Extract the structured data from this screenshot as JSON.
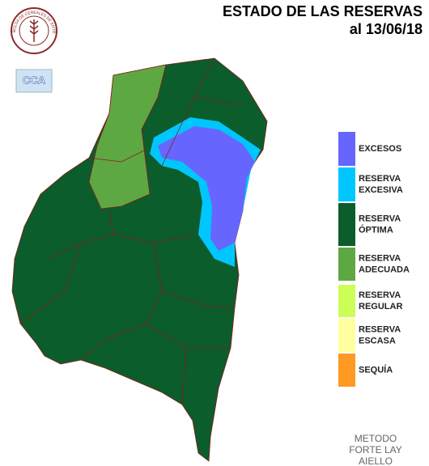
{
  "header": {
    "title": "ESTADO DE LAS RESERVAS",
    "date": "al 13/06/18"
  },
  "logo": {
    "text": "BOLSA DE CEREALES DE ENTRE RIOS",
    "badge": "CCA"
  },
  "legend": [
    {
      "lines": [
        "EXCESOS"
      ],
      "color": "#6666ff"
    },
    {
      "lines": [
        "RESERVA",
        "EXCESIVA"
      ],
      "color": "#00c6ff"
    },
    {
      "lines": [
        "RESERVA",
        "ÓPTIMA"
      ],
      "color": "#0b5d2b"
    },
    {
      "lines": [
        "RESERVA",
        "ADECUADA"
      ],
      "color": "#5ea844"
    },
    {
      "lines": [
        "RESERVA",
        "REGULAR"
      ],
      "color": "#ccff55"
    },
    {
      "lines": [
        "RESERVA",
        "ESCASA"
      ],
      "color": "#ffffa0"
    },
    {
      "lines": [
        "SEQUÍA"
      ],
      "color": "#ff9922"
    }
  ],
  "method": [
    "METODO",
    "FORTE LAY",
    "AIELLO"
  ]
}
